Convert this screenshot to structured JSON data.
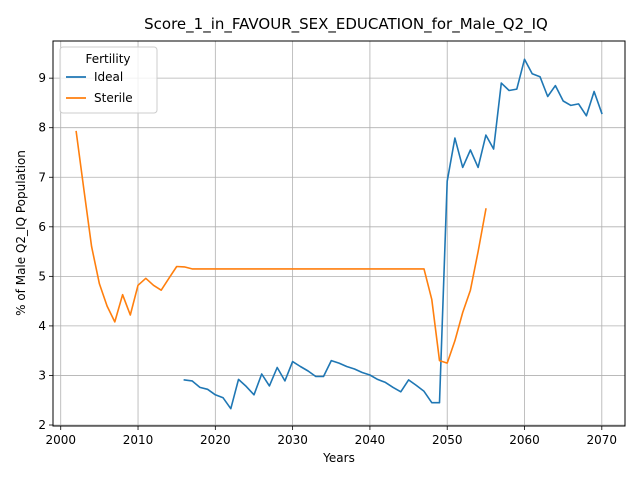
{
  "chart_data": {
    "type": "line",
    "title": "Score_1_in_FAVOUR_SEX_EDUCATION_for_Male_Q2_IQ",
    "xlabel": "Years",
    "ylabel": "% of Male Q2_IQ Population",
    "xlim": [
      1999,
      2073
    ],
    "ylim": [
      1.98,
      9.75
    ],
    "xticks": [
      2000,
      2010,
      2020,
      2030,
      2040,
      2050,
      2060,
      2070
    ],
    "yticks": [
      2,
      3,
      4,
      5,
      6,
      7,
      8,
      9
    ],
    "grid": true,
    "legend": {
      "title": "Fertility",
      "placement": "top-left"
    },
    "series": [
      {
        "name": "Ideal",
        "color": "#1f77b4",
        "x": [
          2016,
          2017,
          2018,
          2019,
          2020,
          2021,
          2022,
          2023,
          2024,
          2025,
          2026,
          2027,
          2028,
          2029,
          2030,
          2031,
          2032,
          2033,
          2034,
          2035,
          2036,
          2037,
          2038,
          2039,
          2040,
          2041,
          2042,
          2043,
          2044,
          2045,
          2046,
          2047,
          2048,
          2049,
          2050,
          2051,
          2052,
          2053,
          2054,
          2055,
          2056,
          2057,
          2058,
          2059,
          2060,
          2061,
          2062,
          2063,
          2064,
          2065,
          2066,
          2067,
          2068,
          2069,
          2070
        ],
        "y": [
          2.91,
          2.89,
          2.76,
          2.72,
          2.61,
          2.55,
          2.33,
          2.92,
          2.78,
          2.61,
          3.03,
          2.79,
          3.16,
          2.89,
          3.28,
          3.18,
          3.09,
          2.98,
          2.98,
          3.3,
          3.25,
          3.18,
          3.13,
          3.06,
          3.01,
          2.92,
          2.86,
          2.76,
          2.67,
          2.91,
          2.8,
          2.68,
          2.45,
          2.45,
          6.92,
          7.79,
          7.2,
          7.55,
          7.2,
          7.85,
          7.57,
          8.9,
          8.75,
          8.78,
          9.38,
          9.09,
          9.03,
          8.63,
          8.85,
          8.54,
          8.45,
          8.48,
          8.24,
          8.73,
          8.29
        ]
      },
      {
        "name": "Sterile",
        "color": "#ff7f0e",
        "x": [
          2002,
          2003,
          2004,
          2005,
          2006,
          2007,
          2008,
          2009,
          2010,
          2011,
          2012,
          2013,
          2014,
          2015,
          2016,
          2017,
          2018,
          2019,
          2020,
          2021,
          2022,
          2023,
          2024,
          2025,
          2026,
          2027,
          2028,
          2029,
          2030,
          2031,
          2032,
          2033,
          2034,
          2035,
          2036,
          2037,
          2038,
          2039,
          2040,
          2041,
          2042,
          2043,
          2044,
          2045,
          2046,
          2047,
          2048,
          2049,
          2050,
          2051,
          2052,
          2053,
          2054,
          2055
        ],
        "y": [
          7.92,
          6.75,
          5.6,
          4.85,
          4.4,
          4.08,
          4.63,
          4.22,
          4.82,
          4.96,
          4.82,
          4.72,
          4.96,
          5.2,
          5.19,
          5.15,
          5.15,
          5.15,
          5.15,
          5.15,
          5.15,
          5.15,
          5.15,
          5.15,
          5.15,
          5.15,
          5.15,
          5.15,
          5.15,
          5.15,
          5.15,
          5.15,
          5.15,
          5.15,
          5.15,
          5.15,
          5.15,
          5.15,
          5.15,
          5.15,
          5.15,
          5.15,
          5.15,
          5.15,
          5.15,
          5.15,
          4.53,
          3.3,
          3.25,
          3.7,
          4.27,
          4.72,
          5.5,
          6.36
        ]
      }
    ]
  }
}
